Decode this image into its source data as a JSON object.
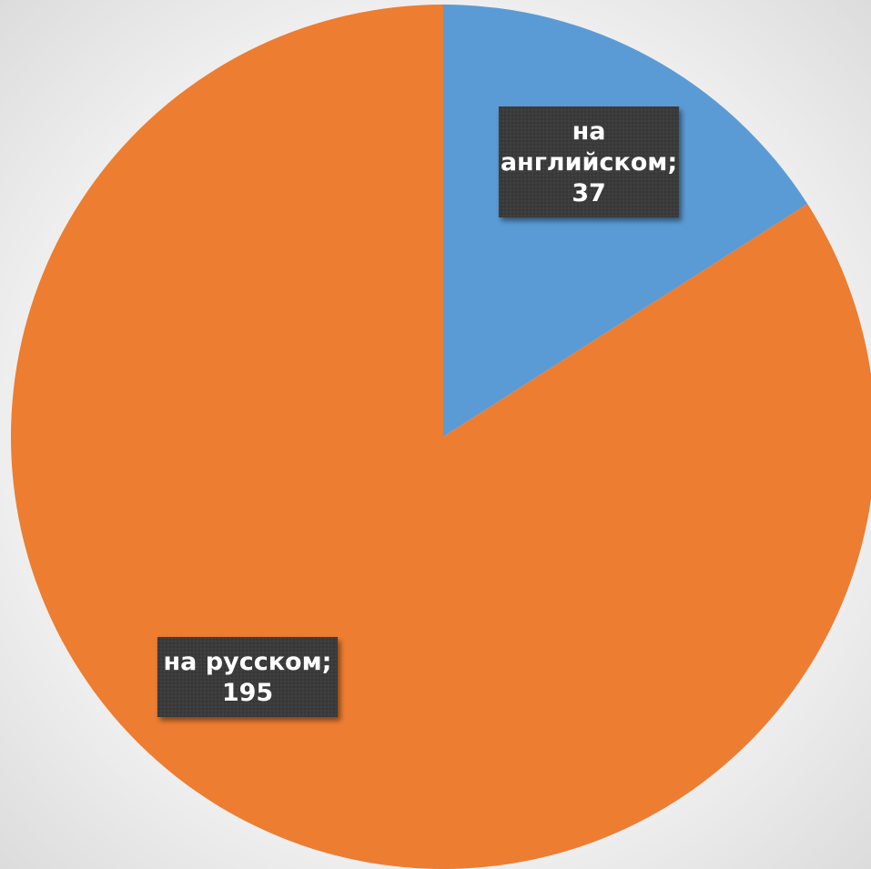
{
  "chart_data": {
    "type": "pie",
    "title": "",
    "start_angle_deg": 0,
    "direction": "clockwise",
    "slices": [
      {
        "label": "на английском",
        "value": 37,
        "color": "#5b9bd5"
      },
      {
        "label": "на русском",
        "value": 195,
        "color": "#ed7d31"
      }
    ],
    "data_labels": [
      {
        "lines": [
          "на",
          "английском;",
          "37"
        ]
      },
      {
        "lines": [
          "на русском;",
          "195"
        ]
      }
    ],
    "legend": "none"
  }
}
